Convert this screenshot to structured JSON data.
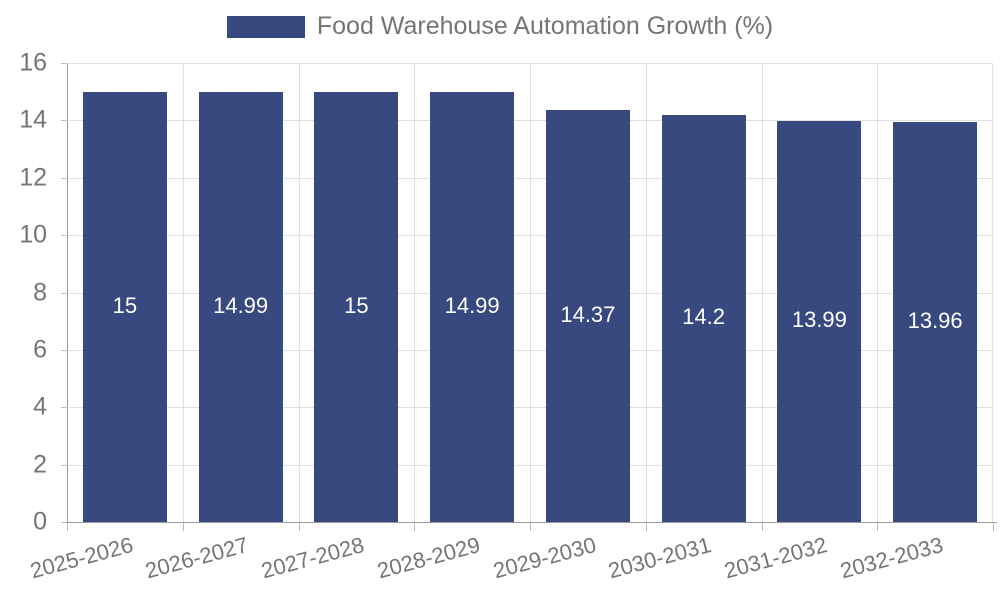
{
  "legend": {
    "label": "Food Warehouse Automation Growth (%)"
  },
  "chart_data": {
    "type": "bar",
    "title": "Food Warehouse Automation Growth (%)",
    "categories": [
      "2025-2026",
      "2026-2027",
      "2027-2028",
      "2028-2029",
      "2029-2030",
      "2030-2031",
      "2031-2032",
      "2032-2033"
    ],
    "values": [
      15,
      14.99,
      15,
      14.99,
      14.37,
      14.2,
      13.99,
      13.96
    ],
    "value_labels": [
      "15",
      "14.99",
      "15",
      "14.99",
      "14.37",
      "14.2",
      "13.99",
      "13.96"
    ],
    "xlabel": "",
    "ylabel": "",
    "ylim": [
      0,
      16
    ],
    "yticks": [
      0,
      2,
      4,
      6,
      8,
      10,
      12,
      14,
      16
    ],
    "grid": true,
    "legend_position": "top-center",
    "colors": {
      "bar": "#38497F",
      "grid": "#e0e0e0",
      "axis": "#999999",
      "tick": "#bbbbbb",
      "text": "#757575",
      "value_text": "#ffffff",
      "background": "#ffffff"
    }
  }
}
